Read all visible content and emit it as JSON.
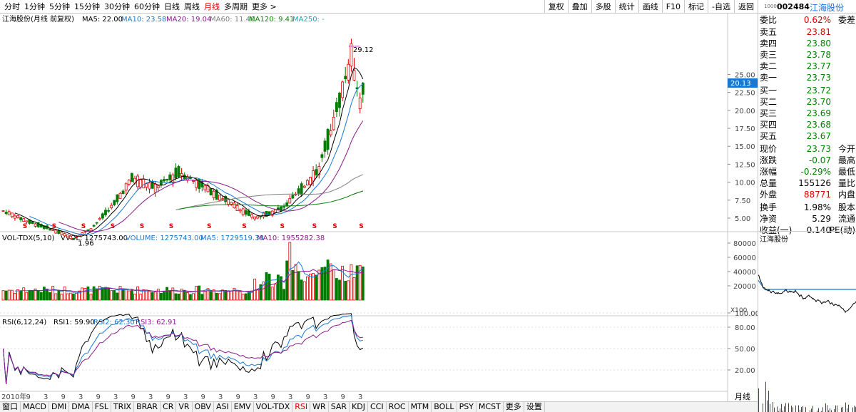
{
  "periods": [
    "分时",
    "1分钟",
    "5分钟",
    "15分钟",
    "30分钟",
    "60分钟",
    "日线",
    "周线",
    "月线",
    "多周期",
    "更多 >"
  ],
  "toolbar": [
    "复权",
    "叠加",
    "多股",
    "统计",
    "画线",
    "F10",
    "标记",
    "-自选",
    "返回"
  ],
  "ma_line": {
    "title": "江海股份(月线 前复权)",
    "ma5": "MA5: 22.00",
    "ma10": "MA10: 23.58",
    "ma20": "MA20: 19.04",
    "ma60": "MA60: 11.40",
    "ma120": "MA120: 9.41",
    "ma250": "MA250: -"
  },
  "vol_line": {
    "title": "VOL-TDX(5,10)",
    "vvol": "VVOL: 1275743.00",
    "volume": "VOLUME: 1275743.00",
    "ma5": "MA5: 1729519.38",
    "ma10": "MA10: 1955282.38"
  },
  "rsi_line": {
    "title": "RSI(6,12,24)",
    "rsi1": "RSI1: 59.90",
    "rsi2": "RSI2: 62.30",
    "rsi3": "RSI3: 62.91"
  },
  "price_axis": [
    "25.00",
    "22.50",
    "20.00",
    "17.50",
    "15.00",
    "12.50",
    "10.00",
    "7.50",
    "5.00"
  ],
  "price_label": "20.13",
  "vol_axis": [
    "80000",
    "60000",
    "40000",
    "20000"
  ],
  "vol_unit": "X100",
  "rsi_axis": [
    "100.00",
    "80.00",
    "50.00",
    "20.00"
  ],
  "high_label": "29.12",
  "low_label": "1.96",
  "dividend_mark": "S",
  "time_axis": [
    "2010年",
    "9",
    "3",
    "9",
    "3",
    "9",
    "3",
    "9",
    "3",
    "9",
    "3",
    "9",
    "3",
    "9",
    "3",
    "9",
    "3",
    "9",
    "3",
    "9",
    "3"
  ],
  "bottom_period": "月线",
  "indicators": [
    "窗口",
    "MACD",
    "DMI",
    "DMA",
    "FSL",
    "TRIX",
    "BRAR",
    "CR",
    "VR",
    "OBV",
    "ASI",
    "EMV",
    "VOL-TDX",
    "RSI",
    "WR",
    "SAR",
    "KDJ",
    "CCI",
    "ROC",
    "MTM",
    "BOLL",
    "PSY",
    "MCST",
    "更多",
    "设置"
  ],
  "quote": {
    "code": "002484",
    "name": "江海股份",
    "tiny": "1000",
    "weibi": {
      "label": "委比",
      "value": "0.62%",
      "label2": "委差"
    },
    "asks": [
      {
        "label": "卖五",
        "price": "23.81",
        "qty": ""
      },
      {
        "label": "卖四",
        "price": "23.80",
        "qty": ""
      },
      {
        "label": "卖三",
        "price": "23.78",
        "qty": ""
      },
      {
        "label": "卖二",
        "price": "23.77",
        "qty": ""
      },
      {
        "label": "卖一",
        "price": "23.73",
        "qty": ""
      }
    ],
    "bids": [
      {
        "label": "买一",
        "price": "23.72",
        "qty": ""
      },
      {
        "label": "买二",
        "price": "23.70",
        "qty": ""
      },
      {
        "label": "买三",
        "price": "23.69",
        "qty": ""
      },
      {
        "label": "买四",
        "price": "23.68",
        "qty": ""
      },
      {
        "label": "买五",
        "price": "23.67",
        "qty": ""
      }
    ],
    "stats": [
      {
        "l": "现价",
        "v": "23.73",
        "l2": "今开",
        "c": "grn"
      },
      {
        "l": "涨跌",
        "v": "-0.07",
        "l2": "最高",
        "c": "grn"
      },
      {
        "l": "涨幅",
        "v": "-0.29%",
        "l2": "最低",
        "c": "grn"
      },
      {
        "l": "总量",
        "v": "155126",
        "l2": "量比",
        "c": ""
      },
      {
        "l": "外盘",
        "v": "88771",
        "l2": "内盘",
        "c": "red"
      }
    ],
    "stats2": [
      {
        "l": "换手",
        "v": "1.98%",
        "l2": "股本"
      },
      {
        "l": "净资",
        "v": "5.29",
        "l2": "流通"
      },
      {
        "l": "收益(一)",
        "v": "0.140",
        "l2": "PE(动)"
      }
    ],
    "mini_title": "江海股份"
  },
  "colors": {
    "up": "#e00000",
    "down": "#008000",
    "ma5": "#000000",
    "ma10": "#1a78d0",
    "ma20": "#8b1a8b",
    "ma60": "#808080",
    "ma120": "#108010"
  }
}
